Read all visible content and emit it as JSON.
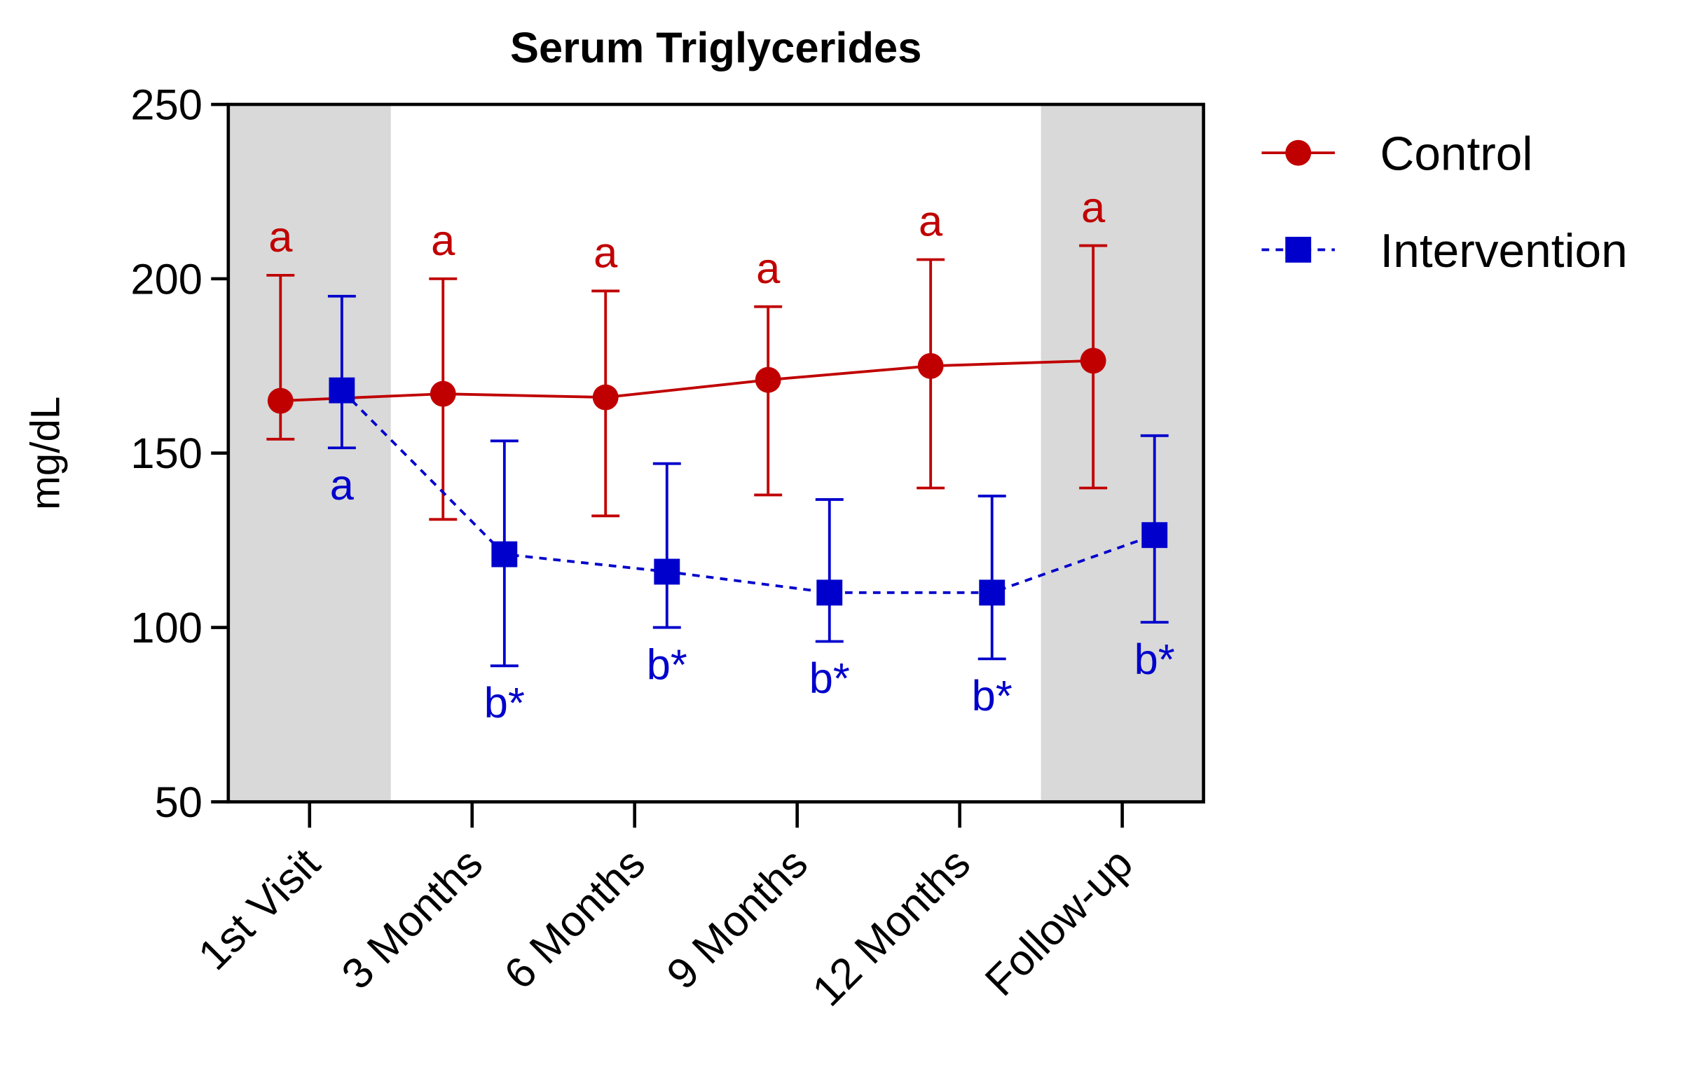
{
  "chart_data": {
    "type": "line",
    "title": "Serum Triglycerides",
    "y_label": "mg/dL",
    "categories": [
      "1st Visit",
      "3 Months",
      "6 Months",
      "9 Months",
      "12 Months",
      "Follow-up"
    ],
    "ylim": [
      50,
      250
    ],
    "yticks": [
      50,
      100,
      150,
      200,
      250
    ],
    "shaded_categories": [
      0,
      5
    ],
    "legend": "right",
    "series": [
      {
        "name": "Control",
        "color": "#c00000",
        "marker": "circle",
        "dashed": false,
        "values": [
          165,
          167,
          166,
          171,
          175,
          176.5
        ],
        "upper": [
          201,
          200,
          196.5,
          192,
          205.5,
          209.5
        ],
        "lower": [
          154,
          131,
          132,
          138,
          140,
          140
        ],
        "annotations": [
          "a",
          "a",
          "a",
          "a",
          "a",
          "a"
        ]
      },
      {
        "name": "Intervention",
        "color": "#0000cc",
        "marker": "square",
        "dashed": true,
        "values": [
          168,
          121,
          116,
          110,
          110,
          126.5
        ],
        "upper": [
          195,
          153.5,
          147,
          136.7,
          137.7,
          155
        ],
        "lower": [
          151.5,
          89,
          100,
          96,
          91,
          101.5
        ],
        "annotations": [
          "a",
          "b*",
          "b*",
          "b*",
          "b*",
          "b*"
        ]
      }
    ]
  }
}
